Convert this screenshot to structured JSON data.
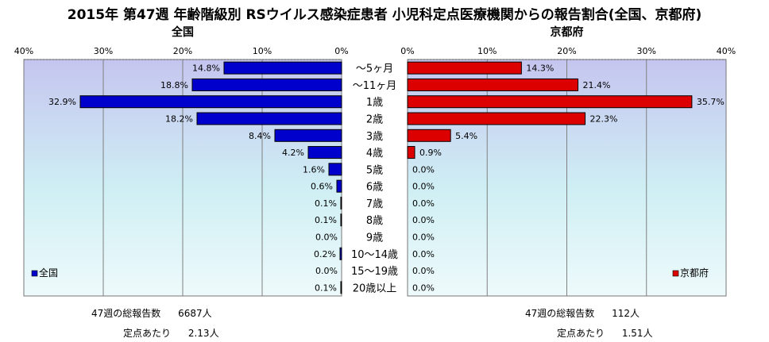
{
  "title": "2015年 第47週 年齢階級別 RSウイルス感染症患者 小児科定点医療機関からの報告割合(全国、京都府)",
  "chart_data": {
    "type": "bar",
    "orientation": "horizontal-mirrored",
    "categories": [
      "～5ヶ月",
      "～11ヶ月",
      "1歳",
      "2歳",
      "3歳",
      "4歳",
      "5歳",
      "6歳",
      "7歳",
      "8歳",
      "9歳",
      "10～14歳",
      "15～19歳",
      "20歳以上"
    ],
    "xlim": [
      0,
      40
    ],
    "tick_labels": [
      "0%",
      "10%",
      "20%",
      "30%",
      "40%"
    ],
    "grid": true,
    "series": [
      {
        "name": "全国",
        "panel_title": "全国",
        "color": "#0000cc",
        "values": [
          14.8,
          18.8,
          32.9,
          18.2,
          8.4,
          4.2,
          1.6,
          0.6,
          0.1,
          0.1,
          0.0,
          0.2,
          0.0,
          0.1
        ],
        "labels": [
          "14.8%",
          "18.8%",
          "32.9%",
          "18.2%",
          "8.4%",
          "4.2%",
          "1.6%",
          "0.6%",
          "0.1%",
          "0.1%",
          "0.0%",
          "0.2%",
          "0.0%",
          "0.1%"
        ],
        "legend": "全国",
        "legend_position": "bottom-left"
      },
      {
        "name": "京都府",
        "panel_title": "京都府",
        "color": "#dd0000",
        "values": [
          14.3,
          21.4,
          35.7,
          22.3,
          5.4,
          0.9,
          0.0,
          0.0,
          0.0,
          0.0,
          0.0,
          0.0,
          0.0,
          0.0
        ],
        "labels": [
          "14.3%",
          "21.4%",
          "35.7%",
          "22.3%",
          "5.4%",
          "0.9%",
          "0.0%",
          "0.0%",
          "0.0%",
          "0.0%",
          "0.0%",
          "0.0%",
          "0.0%",
          "0.0%"
        ],
        "legend": "京都府",
        "legend_position": "bottom-right"
      }
    ]
  },
  "notes": {
    "national": {
      "total_label": "47週の総報告数",
      "total_value": "6687人",
      "per_label": "定点あたり",
      "per_value": "2.13人"
    },
    "kyoto": {
      "total_label": "47週の総報告数",
      "total_value": "112人",
      "per_label": "定点あたり",
      "per_value": "1.51人"
    }
  }
}
